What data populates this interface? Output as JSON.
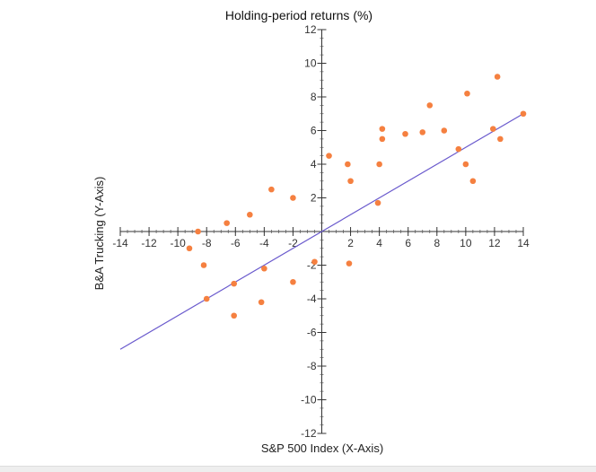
{
  "chart_data": {
    "type": "scatter",
    "title": "Holding-period returns (%)",
    "xlabel": "S&P 500 Index (X-Axis)",
    "ylabel": "B&A Trucking  (Y-Axis)",
    "xlim": [
      -14,
      14
    ],
    "ylim": [
      -12,
      12
    ],
    "x_ticks": [
      -14,
      -12,
      -10,
      -8,
      -6,
      -4,
      -2,
      2,
      4,
      6,
      8,
      10,
      12,
      14
    ],
    "y_ticks": [
      -12,
      -10,
      -8,
      -6,
      -4,
      -2,
      2,
      4,
      6,
      8,
      10,
      12
    ],
    "grid": false,
    "series": [
      {
        "points": [
          [
            -9.2,
            -1.0
          ],
          [
            -8.6,
            0.0
          ],
          [
            -8.2,
            -2.0
          ],
          [
            -8.0,
            -4.0
          ],
          [
            -6.6,
            0.5
          ],
          [
            -6.1,
            -3.1
          ],
          [
            -6.1,
            -5.0
          ],
          [
            -5.0,
            1.0
          ],
          [
            -4.2,
            -4.2
          ],
          [
            -4.0,
            -2.2
          ],
          [
            -3.5,
            2.5
          ],
          [
            -2.0,
            2.0
          ],
          [
            -2.0,
            -3.0
          ],
          [
            -0.5,
            -1.8
          ],
          [
            0.5,
            4.5
          ],
          [
            1.8,
            4.0
          ],
          [
            2.0,
            3.0
          ],
          [
            1.9,
            -1.9
          ],
          [
            3.9,
            1.7
          ],
          [
            4.0,
            4.0
          ],
          [
            4.2,
            6.1
          ],
          [
            4.2,
            5.5
          ],
          [
            5.8,
            5.8
          ],
          [
            7.0,
            5.9
          ],
          [
            7.5,
            7.5
          ],
          [
            8.5,
            6.0
          ],
          [
            9.5,
            4.9
          ],
          [
            10.0,
            4.0
          ],
          [
            10.1,
            8.2
          ],
          [
            10.5,
            3.0
          ],
          [
            11.9,
            6.1
          ],
          [
            12.2,
            9.2
          ],
          [
            12.4,
            5.5
          ],
          [
            14.0,
            7.0
          ]
        ],
        "color": "#f58040"
      },
      {
        "line": [
          [
            -14,
            -7.0
          ],
          [
            14,
            7.0
          ]
        ],
        "color": "#6a5acd"
      }
    ]
  }
}
